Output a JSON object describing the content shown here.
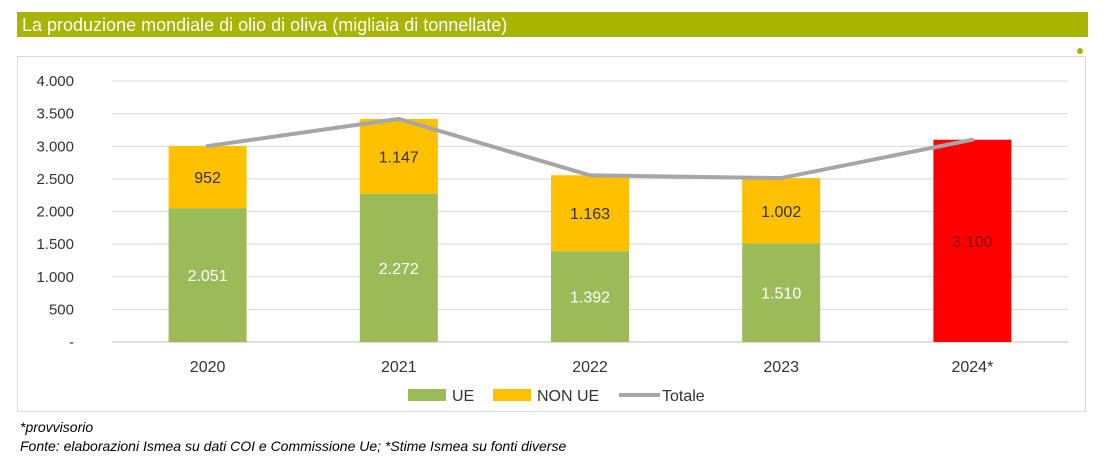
{
  "title": "La produzione mondiale di olio di oliva (migliaia di tonnellate)",
  "footnotes": {
    "note": "*provvisorio",
    "source": "Fonte: elaborazioni Ismea su dati COI e Commissione Ue; *Stime Ismea su fonti diverse"
  },
  "colors": {
    "title_bar": "#a8b400",
    "ue": "#9bbb59",
    "non_ue": "#ffc000",
    "total_estimate": "#ff0000",
    "totale_line": "#a6a6a6",
    "grid": "#d9d9d9"
  },
  "chart_data": {
    "type": "bar",
    "stacked": true,
    "categories": [
      "2020",
      "2021",
      "2022",
      "2023",
      "2024*"
    ],
    "series": [
      {
        "name": "UE",
        "values": [
          2051,
          2272,
          1392,
          1510,
          null
        ],
        "labels": [
          "2.051",
          "2.272",
          "1.392",
          "1.510",
          ""
        ]
      },
      {
        "name": "NON UE",
        "values": [
          952,
          1147,
          1163,
          1002,
          null
        ],
        "labels": [
          "952",
          "1.147",
          "1.163",
          "1.002",
          ""
        ]
      },
      {
        "name": "",
        "values": [
          null,
          null,
          null,
          null,
          3100
        ],
        "labels": [
          "",
          "",
          "",
          "",
          "3.100"
        ]
      }
    ],
    "line_series": {
      "name": "Totale",
      "values": [
        3003,
        3419,
        2555,
        2512,
        3100
      ]
    },
    "ylim": [
      0,
      4000
    ],
    "yticks": [
      0,
      500,
      1000,
      1500,
      2000,
      2500,
      3000,
      3500,
      4000
    ],
    "ytick_labels": [
      "-",
      "500",
      "1.000",
      "1.500",
      "2.000",
      "2.500",
      "3.000",
      "3.500",
      "4.000"
    ],
    "grid": true,
    "legend_position": "bottom",
    "legend": [
      "UE",
      "NON UE",
      "Totale"
    ]
  }
}
